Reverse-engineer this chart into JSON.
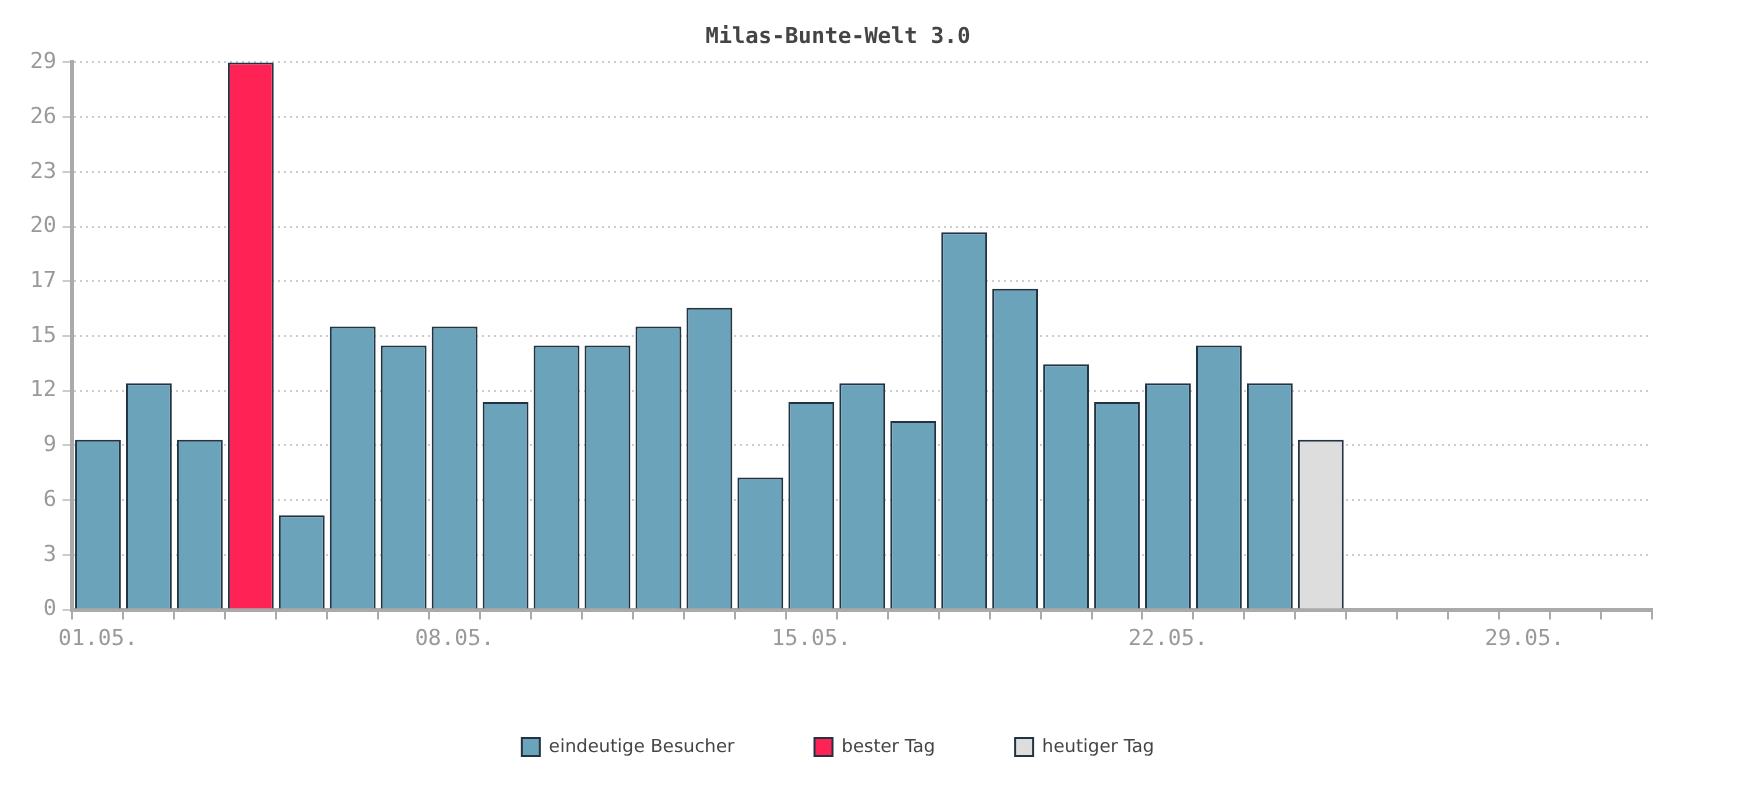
{
  "chart_data": {
    "type": "bar",
    "title": "Milas-Bunte-Welt 3.0",
    "categories": [
      "01.05.",
      null,
      null,
      null,
      null,
      null,
      null,
      "08.05.",
      null,
      null,
      null,
      null,
      null,
      null,
      "15.05.",
      null,
      null,
      null,
      null,
      null,
      null,
      "22.05.",
      null,
      null,
      null,
      null,
      null,
      null,
      "29.05.",
      null,
      null
    ],
    "series": [
      {
        "name": "eindeutige Besucher",
        "color": "#6ba3ba",
        "values": [
          9,
          12,
          9,
          null,
          5,
          15,
          14,
          15,
          11,
          14,
          14,
          15,
          16,
          7,
          11,
          12,
          10,
          20,
          17,
          13,
          11,
          12,
          14,
          12,
          null,
          null,
          null,
          null,
          null,
          null,
          null
        ]
      },
      {
        "name": "bester Tag",
        "color": "#ff2255",
        "values": [
          null,
          null,
          null,
          29,
          null,
          null,
          null,
          null,
          null,
          null,
          null,
          null,
          null,
          null,
          null,
          null,
          null,
          null,
          null,
          null,
          null,
          null,
          null,
          null,
          null,
          null,
          null,
          null,
          null,
          null,
          null
        ]
      },
      {
        "name": "heutiger Tag",
        "color": "#dddddd",
        "values": [
          null,
          null,
          null,
          null,
          null,
          null,
          null,
          null,
          null,
          null,
          null,
          null,
          null,
          null,
          null,
          null,
          null,
          null,
          null,
          null,
          null,
          null,
          null,
          null,
          9,
          null,
          null,
          null,
          null,
          null,
          null
        ]
      }
    ],
    "ylim": [
      0,
      29
    ],
    "yticks": [
      0,
      {
        "value": 2.9,
        "label": "3"
      },
      {
        "value": 5.8,
        "label": "6"
      },
      {
        "value": 8.7,
        "label": "9"
      },
      {
        "value": 11.6,
        "label": "12"
      },
      {
        "value": 14.5,
        "label": "15"
      },
      {
        "value": 17.4,
        "label": "17"
      },
      {
        "value": 20.3,
        "label": "20"
      },
      {
        "value": 23.2,
        "label": "23"
      },
      {
        "value": 26.1,
        "label": "26"
      },
      29
    ],
    "grid": "y",
    "line_style": "dotted",
    "legend": "bottom"
  }
}
